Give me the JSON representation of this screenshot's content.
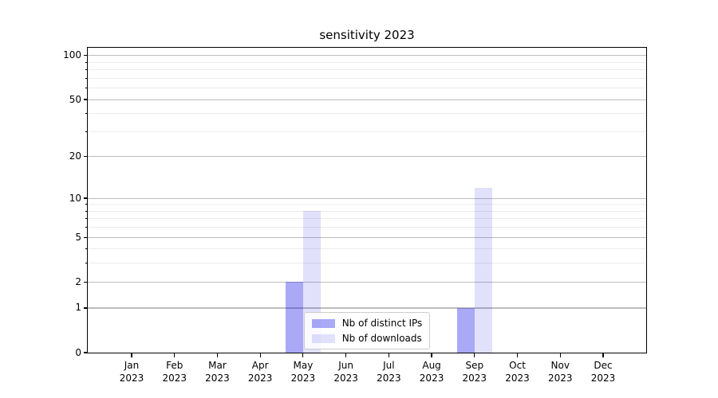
{
  "chart_data": {
    "type": "bar",
    "title": "sensitivity 2023",
    "categories": [
      {
        "month": "Jan",
        "year": "2023"
      },
      {
        "month": "Feb",
        "year": "2023"
      },
      {
        "month": "Mar",
        "year": "2023"
      },
      {
        "month": "Apr",
        "year": "2023"
      },
      {
        "month": "May",
        "year": "2023"
      },
      {
        "month": "Jun",
        "year": "2023"
      },
      {
        "month": "Jul",
        "year": "2023"
      },
      {
        "month": "Aug",
        "year": "2023"
      },
      {
        "month": "Sep",
        "year": "2023"
      },
      {
        "month": "Oct",
        "year": "2023"
      },
      {
        "month": "Nov",
        "year": "2023"
      },
      {
        "month": "Dec",
        "year": "2023"
      }
    ],
    "series": [
      {
        "name": "Nb of distinct IPs",
        "color": "rgba(10,10,230,0.35)",
        "color_observed_hex": "#aaaaf4",
        "values": [
          0,
          0,
          0,
          0,
          2,
          0,
          0,
          0,
          1,
          0,
          0,
          0
        ]
      },
      {
        "name": "Nb of downloads",
        "color": "rgba(10,10,230,0.12)",
        "color_observed_hex": "#dcdcf7",
        "values": [
          0,
          0,
          0,
          0,
          8,
          0,
          0,
          0,
          12,
          0,
          0,
          0
        ]
      }
    ],
    "y_axis": {
      "scale": "log1p",
      "major_ticks": [
        0,
        1,
        2,
        5,
        10,
        20,
        50,
        100
      ],
      "minor_ticks": [
        3,
        4,
        6,
        7,
        8,
        9,
        30,
        40,
        60,
        70,
        80,
        90
      ],
      "ylim": [
        0,
        113
      ]
    },
    "legend": {
      "position": "lower center"
    },
    "grid": {
      "on": true,
      "major_color": "#bdbdbd",
      "minor_color": "#ececec"
    }
  }
}
